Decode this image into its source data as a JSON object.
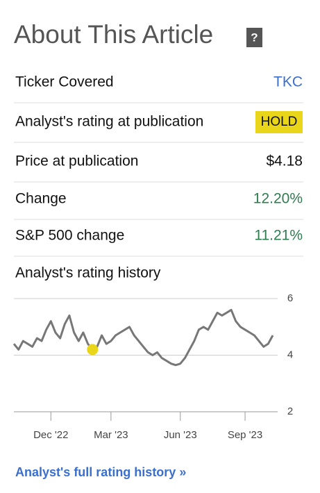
{
  "header": {
    "title": "About This Article",
    "help_icon": "?"
  },
  "rows": [
    {
      "label": "Ticker Covered",
      "value": "TKC",
      "color": "#3a6fd0"
    },
    {
      "label": "Analyst's rating at publication",
      "value": "HOLD",
      "badge_color": "#e9d51a"
    },
    {
      "label": "Price at publication",
      "value": "$4.18"
    },
    {
      "label": "Change",
      "value": "12.20%",
      "color": "#2e7d4f"
    },
    {
      "label": "S&P 500 change",
      "value": "11.21%",
      "color": "#2e7d4f"
    }
  ],
  "chart_data": {
    "type": "line",
    "title": "Analyst's rating history",
    "categories": [
      null,
      null,
      null,
      null,
      null,
      null,
      null,
      null,
      "Dec '22",
      null,
      null,
      null,
      null,
      null,
      null,
      null,
      null,
      null,
      null,
      null,
      null,
      "Mar '23",
      null,
      null,
      null,
      null,
      null,
      null,
      null,
      null,
      null,
      null,
      null,
      null,
      null,
      null,
      "Jun '23",
      null,
      null,
      null,
      null,
      null,
      null,
      null,
      null,
      null,
      null,
      null,
      null,
      null,
      "Sep '23",
      null,
      null,
      null,
      null,
      null,
      null
    ],
    "series": [
      {
        "color": "#777777",
        "values": [
          4.4,
          4.2,
          4.5,
          4.4,
          4.3,
          4.6,
          4.5,
          4.9,
          5.2,
          4.8,
          4.6,
          5.1,
          5.4,
          4.8,
          4.5,
          4.8,
          4.4,
          4.2,
          4.3,
          4.7,
          4.4,
          4.5,
          4.7,
          4.8,
          4.9,
          5.0,
          4.7,
          4.5,
          4.3,
          4.1,
          4.0,
          4.1,
          3.9,
          3.8,
          3.7,
          3.65,
          3.7,
          3.9,
          4.2,
          4.5,
          4.9,
          5.0,
          4.9,
          5.2,
          5.5,
          5.4,
          5.5,
          5.6,
          5.2,
          5.0,
          4.9,
          4.8,
          4.7,
          4.5,
          4.3,
          4.4,
          4.7
        ]
      },
      {
        "color": "#e9d51a",
        "values": [
          null,
          null,
          null,
          null,
          null,
          null,
          null,
          null,
          null,
          null,
          null,
          null,
          null,
          null,
          null,
          null,
          null,
          4.2,
          null,
          null,
          null,
          null,
          null,
          null,
          null,
          null,
          null,
          null,
          null,
          null,
          null,
          null,
          null,
          null,
          null,
          null,
          null,
          null,
          null,
          null,
          null,
          null,
          null,
          null,
          null,
          null,
          null,
          null,
          null,
          null,
          null,
          null,
          null,
          null,
          null,
          null,
          null
        ]
      }
    ],
    "ylim": [
      2,
      6
    ],
    "yticks": [
      2,
      4,
      6
    ],
    "grid": true
  },
  "link": "Analyst's full rating history »"
}
